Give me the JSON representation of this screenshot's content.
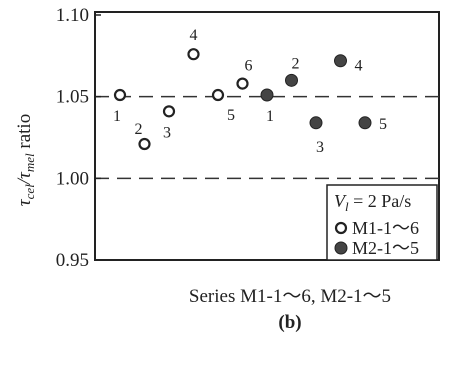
{
  "chart_data": {
    "type": "scatter",
    "title": "",
    "ylabel_main": "τ",
    "ylabel_sub1": "cel",
    "ylabel_mid": "/τ",
    "ylabel_sub2": "mel",
    "ylabel_tail": " ratio",
    "xlabel": "Series M1-1～6, M2-1～5",
    "sublabel": "(b)",
    "ylim": [
      0.95,
      1.1
    ],
    "yticks": [
      "1.10",
      "1.05",
      "1.00",
      "0.95"
    ],
    "ytick_values": [
      1.1,
      1.05,
      1.0,
      0.95
    ],
    "reference_lines": [
      1.05,
      1.0
    ],
    "grid": false,
    "legend": {
      "placement": "bottom-right",
      "title_main": "V",
      "title_sub": "l",
      "title_tail": " = 2 Pa/s",
      "entries": [
        "M1-1～6",
        "M2-1～5"
      ]
    },
    "series": [
      {
        "name": "M1-1～6",
        "marker": "open-circle",
        "points": [
          {
            "label": "1",
            "x": 1,
            "y": 1.051
          },
          {
            "label": "2",
            "x": 2,
            "y": 1.021
          },
          {
            "label": "3",
            "x": 3,
            "y": 1.041
          },
          {
            "label": "4",
            "x": 4,
            "y": 1.076
          },
          {
            "label": "5",
            "x": 5,
            "y": 1.051
          },
          {
            "label": "6",
            "x": 6,
            "y": 1.058
          }
        ]
      },
      {
        "name": "M2-1～5",
        "marker": "filled-circle",
        "points": [
          {
            "label": "1",
            "x": 7,
            "y": 1.051
          },
          {
            "label": "2",
            "x": 8,
            "y": 1.06
          },
          {
            "label": "3",
            "x": 9,
            "y": 1.034
          },
          {
            "label": "4",
            "x": 10,
            "y": 1.072
          },
          {
            "label": "5",
            "x": 11,
            "y": 1.034
          }
        ]
      }
    ]
  }
}
